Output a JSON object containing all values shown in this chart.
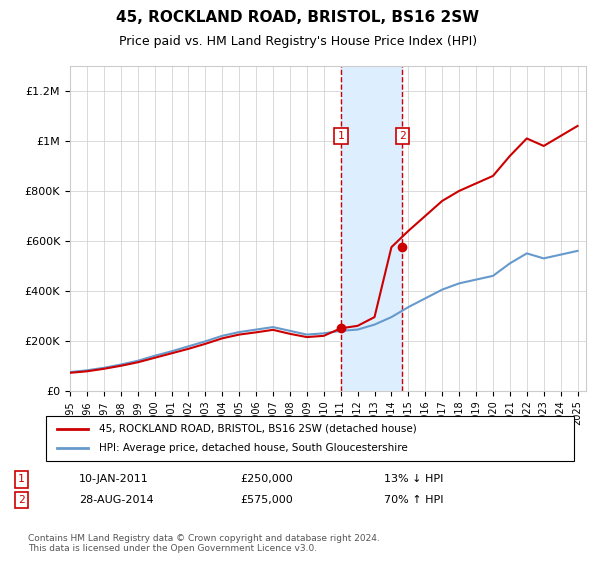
{
  "title": "45, ROCKLAND ROAD, BRISTOL, BS16 2SW",
  "subtitle": "Price paid vs. HM Land Registry's House Price Index (HPI)",
  "legend_line1": "45, ROCKLAND ROAD, BRISTOL, BS16 2SW (detached house)",
  "legend_line2": "HPI: Average price, detached house, South Gloucestershire",
  "transaction1_label": "1",
  "transaction1_date": "10-JAN-2011",
  "transaction1_price": "£250,000",
  "transaction1_pct": "13% ↓ HPI",
  "transaction2_label": "2",
  "transaction2_date": "28-AUG-2014",
  "transaction2_price": "£575,000",
  "transaction2_pct": "70% ↑ HPI",
  "footer": "Contains HM Land Registry data © Crown copyright and database right 2024.\nThis data is licensed under the Open Government Licence v3.0.",
  "ylim": [
    0,
    1300000
  ],
  "yticks": [
    0,
    200000,
    400000,
    600000,
    800000,
    1000000,
    1200000
  ],
  "ytick_labels": [
    "£0",
    "£200K",
    "£400K",
    "£600K",
    "£800K",
    "£1M",
    "£1.2M"
  ],
  "red_color": "#cc0000",
  "blue_color": "#6699cc",
  "shade_color": "#ddeeff",
  "marker_box_color": "#cc0000",
  "grid_color": "#cccccc",
  "background_color": "#ffffff",
  "transaction1_x": 2011.03,
  "transaction2_x": 2014.65,
  "transaction1_y": 250000,
  "transaction2_y": 575000,
  "hpi_years": [
    1995,
    1996,
    1997,
    1998,
    1999,
    2000,
    2001,
    2002,
    2003,
    2004,
    2005,
    2006,
    2007,
    2008,
    2009,
    2010,
    2011,
    2012,
    2013,
    2014,
    2015,
    2016,
    2017,
    2018,
    2019,
    2020,
    2021,
    2022,
    2023,
    2024,
    2025
  ],
  "hpi_values": [
    75000,
    82000,
    92000,
    105000,
    120000,
    140000,
    158000,
    178000,
    198000,
    220000,
    235000,
    245000,
    255000,
    240000,
    225000,
    230000,
    240000,
    245000,
    265000,
    295000,
    335000,
    370000,
    405000,
    430000,
    445000,
    460000,
    510000,
    550000,
    530000,
    545000,
    560000
  ],
  "red_years": [
    1995,
    1996,
    1997,
    1998,
    1999,
    2000,
    2001,
    2002,
    2003,
    2004,
    2005,
    2006,
    2007,
    2008,
    2009,
    2010,
    2011,
    2012,
    2013,
    2014,
    2015,
    2016,
    2017,
    2018,
    2019,
    2020,
    2021,
    2022,
    2023,
    2024,
    2025
  ],
  "red_values": [
    72000,
    78000,
    88000,
    100000,
    114000,
    132000,
    150000,
    168000,
    188000,
    210000,
    225000,
    234000,
    244000,
    228000,
    215000,
    220000,
    250000,
    260000,
    295000,
    575000,
    640000,
    700000,
    760000,
    800000,
    830000,
    860000,
    940000,
    1010000,
    980000,
    1020000,
    1060000
  ],
  "xmin": 1995,
  "xmax": 2025.5
}
